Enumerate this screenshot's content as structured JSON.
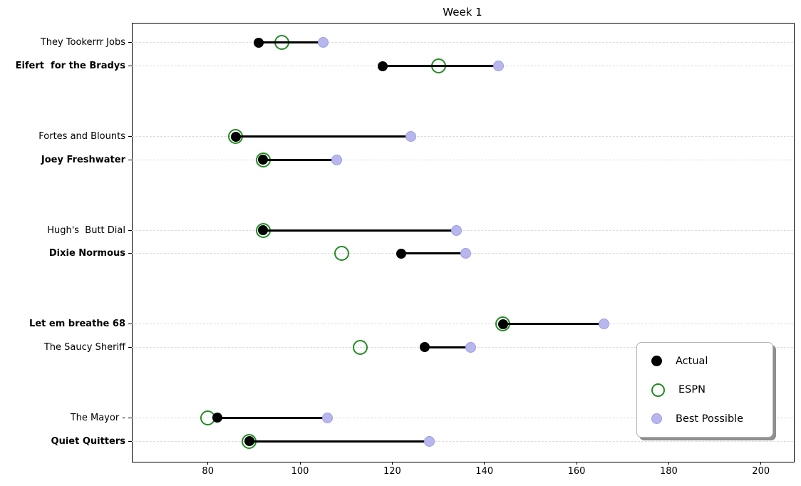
{
  "colors": {
    "actual": "#000000",
    "espn": "#228B22",
    "best_fill": "#b7b7ee",
    "best_edge": "#9c9ce6",
    "grid": "#dcdcdc",
    "connector": "#000000"
  },
  "chart_data": {
    "type": "scatter",
    "variant": "dumbbell",
    "title": "Week 1",
    "xlabel": "",
    "ylabel": "",
    "xlim": [
      63.5,
      207
    ],
    "ylim": [
      -0.85,
      17.85
    ],
    "grid": "horizontal dashed",
    "x_ticks": [
      80,
      100,
      120,
      140,
      160,
      180,
      200
    ],
    "legend_position": "lower right",
    "legend_items": [
      {
        "label": "Actual",
        "marker": "filled-black-circle"
      },
      {
        "label": "ESPN",
        "marker": "open-green-circle"
      },
      {
        "label": "Best Possible",
        "marker": "filled-lavender-circle"
      }
    ],
    "rows": [
      {
        "team": "They Tookerrr Jobs",
        "bold": false,
        "y": 0,
        "actual": 91,
        "espn": 96,
        "best": 105
      },
      {
        "team": "Eifert  for the Bradys",
        "bold": true,
        "y": 1,
        "actual": 118,
        "espn": 130,
        "best": 143
      },
      {
        "team": "Fortes and Blounts",
        "bold": false,
        "y": 4,
        "actual": 86,
        "espn": 86,
        "best": 124
      },
      {
        "team": "Joey Freshwater",
        "bold": true,
        "y": 5,
        "actual": 92,
        "espn": 92,
        "best": 108
      },
      {
        "team": "Hugh's  Butt Dial",
        "bold": false,
        "y": 8,
        "actual": 92,
        "espn": 92,
        "best": 134
      },
      {
        "team": "Dixie Normous",
        "bold": true,
        "y": 9,
        "actual": 122,
        "espn": 109,
        "best": 136
      },
      {
        "team": "Let em breathe 68",
        "bold": true,
        "y": 12,
        "actual": 144,
        "espn": 144,
        "best": 166
      },
      {
        "team": "The Saucy Sheriff",
        "bold": false,
        "y": 13,
        "actual": 127,
        "espn": 113,
        "best": 137
      },
      {
        "team": "The Mayor -",
        "bold": false,
        "y": 16,
        "actual": 82,
        "espn": 80,
        "best": 106
      },
      {
        "team": "Quiet Quitters",
        "bold": true,
        "y": 17,
        "actual": 89,
        "espn": 89,
        "best": 128
      }
    ]
  }
}
